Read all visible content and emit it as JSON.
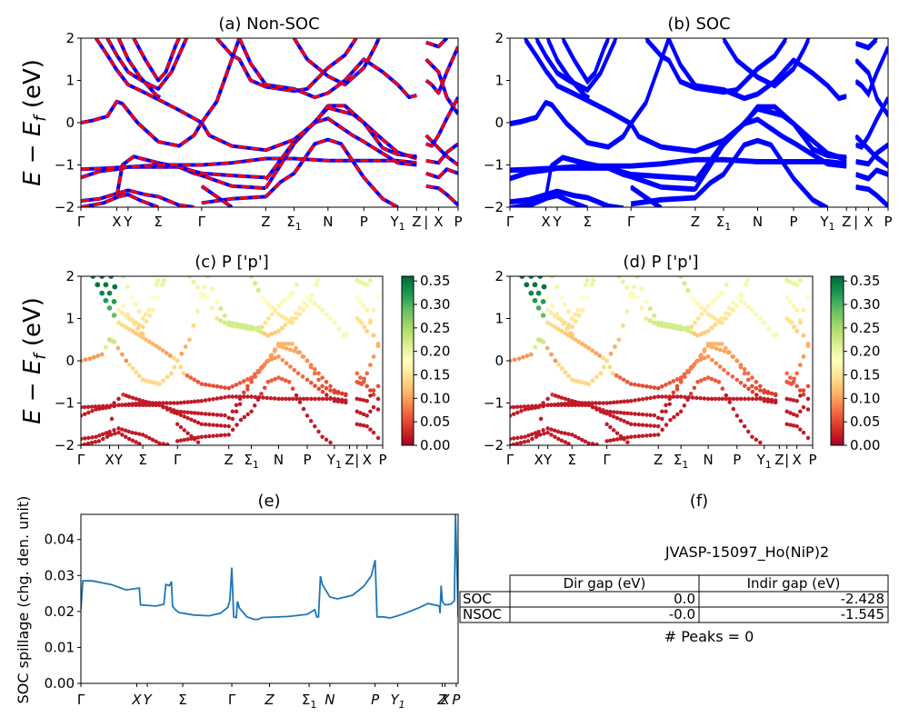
{
  "figure_id": "JVASP-15097_Ho(NiP)2",
  "panels": {
    "a": {
      "title": "(a) Non-SOC"
    },
    "b": {
      "title": "(b) SOC"
    },
    "c": {
      "title": "(c)  P ['p']"
    },
    "d": {
      "title": "(d) P ['p']"
    },
    "e": {
      "title": "(e)"
    },
    "f": {
      "title": "(f)"
    }
  },
  "band_ylabel": "E − E",
  "band_ylabel_sub": "f",
  "band_ylabel_unit": " (eV)",
  "spillage_ylabel": "SOC spillage (chg. den. unit)",
  "colorbar_ticks": [
    "0.00",
    "0.05",
    "0.10",
    "0.15",
    "0.20",
    "0.25",
    "0.30",
    "0.35"
  ],
  "kpath_band": [
    {
      "label": "Γ",
      "pos": 0.0
    },
    {
      "label": "X",
      "pos": 0.095
    },
    {
      "label": "Y",
      "pos": 0.125
    },
    {
      "label": "Σ",
      "pos": 0.205
    },
    {
      "label": "Γ",
      "pos": 0.32
    },
    {
      "label": "Z",
      "pos": 0.49
    },
    {
      "label": "Σ",
      "sub": "1",
      "pos": 0.565
    },
    {
      "label": "N",
      "pos": 0.655
    },
    {
      "label": "P",
      "pos": 0.75
    },
    {
      "label": "Y",
      "sub": "1",
      "pos": 0.84
    },
    {
      "label": "Z",
      "pos": 0.89
    },
    {
      "label": "|",
      "pos": 0.915
    },
    {
      "label": "X",
      "pos": 0.948
    },
    {
      "label": "P",
      "pos": 1.0
    }
  ],
  "kpath_bandc": [
    {
      "label": "Γ",
      "pos": 0.0
    },
    {
      "label": "X",
      "pos": 0.095
    },
    {
      "label": "Y",
      "pos": 0.125
    },
    {
      "label": "Σ",
      "pos": 0.205
    },
    {
      "label": "Γ",
      "pos": 0.32
    },
    {
      "label": "Z",
      "pos": 0.49
    },
    {
      "label": "Σ",
      "sub": "1",
      "pos": 0.565
    },
    {
      "label": "N",
      "pos": 0.655
    },
    {
      "label": "P",
      "pos": 0.75
    },
    {
      "label": "Y",
      "sub": "1",
      "pos": 0.84
    },
    {
      "label": "Z",
      "pos": 0.89
    },
    {
      "label": "|",
      "pos": 0.915
    },
    {
      "label": "X",
      "pos": 0.948
    },
    {
      "label": "P",
      "pos": 1.0
    }
  ],
  "kpath_spill": [
    {
      "label": "Γ",
      "pos": 0.0
    },
    {
      "label": "X",
      "pos": 0.148
    },
    {
      "label": "Y",
      "pos": 0.176
    },
    {
      "label": "Σ",
      "pos": 0.27
    },
    {
      "label": "Γ",
      "pos": 0.4
    },
    {
      "label": "Z",
      "pos": 0.5
    },
    {
      "label": "Σ",
      "sub": "1",
      "pos": 0.605
    },
    {
      "label": "N",
      "pos": 0.66
    },
    {
      "label": "P",
      "pos": 0.78
    },
    {
      "label": "Y",
      "sub": "1",
      "pos": 0.84
    },
    {
      "label": "Z",
      "pos": 0.958
    },
    {
      "label": "X",
      "pos": 0.965
    },
    {
      "label": "P",
      "pos": 0.995
    }
  ],
  "chart_data": [
    {
      "type": "line",
      "panel": "a",
      "title": "(a) Non-SOC",
      "ylabel": "E − E_f (eV)",
      "ylim": [
        -2,
        2
      ],
      "series_colors": [
        "#0000ff",
        "#ff0000"
      ],
      "bands": [
        [
          [
            0,
            -2.0
          ],
          [
            0.06,
            -1.9
          ],
          [
            0.1,
            -1.75
          ],
          [
            0.125,
            -1.7
          ],
          [
            0.16,
            -1.85
          ],
          [
            0.205,
            -2.0
          ]
        ],
        [
          [
            0,
            -1.85
          ],
          [
            0.05,
            -1.8
          ],
          [
            0.095,
            -1.68
          ],
          [
            0.125,
            -1.6
          ],
          [
            0.17,
            -1.7
          ],
          [
            0.205,
            -1.75
          ],
          [
            0.26,
            -1.95
          ],
          [
            0.3,
            -2.0
          ]
        ],
        [
          [
            0,
            -1.3
          ],
          [
            0.05,
            -1.15
          ],
          [
            0.095,
            -1.1
          ],
          [
            0.125,
            -1.05
          ],
          [
            0.205,
            -1.05
          ],
          [
            0.26,
            -1.05
          ],
          [
            0.3,
            -1.2
          ],
          [
            0.32,
            -1.25
          ],
          [
            0.4,
            -1.5
          ],
          [
            0.49,
            -1.55
          ]
        ],
        [
          [
            0.095,
            -1.75
          ],
          [
            0.11,
            -1.0
          ],
          [
            0.14,
            -0.8
          ],
          [
            0.16,
            -0.85
          ],
          [
            0.205,
            -0.95
          ],
          [
            0.26,
            -1.05
          ],
          [
            0.32,
            -1.2
          ],
          [
            0.4,
            -1.25
          ],
          [
            0.49,
            -1.3
          ]
        ],
        [
          [
            0,
            -1.1
          ],
          [
            0.06,
            -1.08
          ],
          [
            0.125,
            -1.05
          ],
          [
            0.205,
            -1.0
          ],
          [
            0.26,
            -1.0
          ],
          [
            0.32,
            -1.0
          ],
          [
            0.4,
            -0.95
          ],
          [
            0.49,
            -0.85
          ],
          [
            0.565,
            -0.85
          ],
          [
            0.655,
            -0.9
          ],
          [
            0.75,
            -0.9
          ],
          [
            0.84,
            -0.9
          ],
          [
            0.89,
            -0.95
          ]
        ],
        [
          [
            0.32,
            -1.9
          ],
          [
            0.4,
            -1.8
          ],
          [
            0.49,
            -1.75
          ],
          [
            0.53,
            -1.4
          ],
          [
            0.565,
            -1.2
          ],
          [
            0.62,
            -0.5
          ],
          [
            0.655,
            -0.4
          ],
          [
            0.69,
            -0.5
          ],
          [
            0.75,
            -1.3
          ],
          [
            0.8,
            -1.8
          ],
          [
            0.84,
            -2.0
          ]
        ],
        [
          [
            0.32,
            -1.5
          ],
          [
            0.4,
            -2.0
          ]
        ],
        [
          [
            0.49,
            -1.55
          ],
          [
            0.565,
            -0.5
          ],
          [
            0.655,
            0.35
          ],
          [
            0.72,
            0.2
          ],
          [
            0.75,
            0.0
          ],
          [
            0.8,
            -0.4
          ],
          [
            0.84,
            -0.7
          ],
          [
            0.89,
            -0.85
          ]
        ],
        [
          [
            0.49,
            -1.35
          ],
          [
            0.565,
            -0.45
          ],
          [
            0.62,
            0.0
          ],
          [
            0.655,
            0.1
          ],
          [
            0.72,
            -0.3
          ],
          [
            0.75,
            -0.45
          ],
          [
            0.84,
            -0.95
          ],
          [
            0.89,
            -1.0
          ]
        ],
        [
          [
            0,
            0.0
          ],
          [
            0.03,
            0.05
          ],
          [
            0.07,
            0.15
          ],
          [
            0.095,
            0.5
          ],
          [
            0.11,
            0.45
          ],
          [
            0.15,
            0.0
          ],
          [
            0.205,
            -0.45
          ],
          [
            0.26,
            -0.55
          ],
          [
            0.3,
            -0.3
          ],
          [
            0.32,
            0.0
          ],
          [
            0.34,
            -0.3
          ],
          [
            0.4,
            -0.55
          ],
          [
            0.49,
            -0.65
          ],
          [
            0.565,
            -0.4
          ],
          [
            0.62,
            0.0
          ],
          [
            0.655,
            0.4
          ],
          [
            0.7,
            0.4
          ],
          [
            0.75,
            0.0
          ],
          [
            0.8,
            -0.6
          ],
          [
            0.84,
            -0.75
          ],
          [
            0.89,
            -0.8
          ]
        ],
        [
          [
            0.04,
            2.0
          ],
          [
            0.07,
            1.6
          ],
          [
            0.095,
            1.25
          ],
          [
            0.125,
            0.9
          ],
          [
            0.16,
            0.75
          ],
          [
            0.205,
            0.55
          ],
          [
            0.26,
            0.3
          ],
          [
            0.32,
            0.0
          ],
          [
            0.36,
            0.5
          ],
          [
            0.4,
            1.5
          ],
          [
            0.42,
            2.0
          ]
        ],
        [
          [
            0.07,
            2.0
          ],
          [
            0.095,
            1.6
          ],
          [
            0.125,
            1.2
          ],
          [
            0.16,
            1.0
          ],
          [
            0.205,
            0.8
          ],
          [
            0.24,
            1.2
          ],
          [
            0.27,
            1.8
          ],
          [
            0.28,
            2.0
          ]
        ],
        [
          [
            0.1,
            2.0
          ],
          [
            0.125,
            1.5
          ],
          [
            0.155,
            1.1
          ],
          [
            0.2,
            0.65
          ],
          [
            0.21,
            0.6
          ]
        ],
        [
          [
            0.14,
            2.0
          ],
          [
            0.17,
            1.5
          ],
          [
            0.205,
            1.0
          ],
          [
            0.225,
            1.2
          ],
          [
            0.25,
            1.8
          ],
          [
            0.26,
            2.0
          ]
        ],
        [
          [
            0.36,
            2.0
          ],
          [
            0.4,
            1.6
          ],
          [
            0.42,
            1.5
          ],
          [
            0.45,
            1.0
          ],
          [
            0.49,
            0.85
          ],
          [
            0.565,
            0.75
          ],
          [
            0.6,
            0.8
          ],
          [
            0.655,
            1.3
          ],
          [
            0.7,
            1.6
          ],
          [
            0.73,
            2.0
          ]
        ],
        [
          [
            0.42,
            2.0
          ],
          [
            0.45,
            1.4
          ],
          [
            0.49,
            0.9
          ],
          [
            0.565,
            0.8
          ],
          [
            0.62,
            0.6
          ],
          [
            0.655,
            0.7
          ],
          [
            0.7,
            1.0
          ],
          [
            0.75,
            1.5
          ],
          [
            0.8,
            1.2
          ],
          [
            0.84,
            0.9
          ],
          [
            0.87,
            0.6
          ],
          [
            0.89,
            0.65
          ]
        ],
        [
          [
            0.565,
            2.0
          ],
          [
            0.6,
            1.5
          ],
          [
            0.655,
            1.1
          ],
          [
            0.7,
            0.9
          ],
          [
            0.75,
            1.3
          ],
          [
            0.78,
            1.8
          ],
          [
            0.79,
            2.0
          ]
        ],
        [
          [
            0.915,
            1.0
          ],
          [
            0.93,
            0.9
          ],
          [
            0.948,
            0.7
          ],
          [
            0.97,
            1.2
          ],
          [
            1.0,
            1.8
          ]
        ],
        [
          [
            0.915,
            1.5
          ],
          [
            0.948,
            1.2
          ],
          [
            0.97,
            0.6
          ],
          [
            1.0,
            0.2
          ]
        ],
        [
          [
            0.915,
            -0.3
          ],
          [
            0.948,
            -0.6
          ],
          [
            0.97,
            -0.8
          ],
          [
            1.0,
            -1.0
          ]
        ],
        [
          [
            0.915,
            -0.9
          ],
          [
            0.948,
            -0.95
          ],
          [
            0.97,
            -0.7
          ],
          [
            1.0,
            -0.5
          ]
        ],
        [
          [
            0.915,
            -1.2
          ],
          [
            0.948,
            -1.3
          ],
          [
            0.97,
            -1.1
          ],
          [
            1.0,
            -1.2
          ]
        ],
        [
          [
            0.915,
            1.9
          ],
          [
            0.948,
            1.8
          ],
          [
            0.97,
            2.0
          ]
        ],
        [
          [
            0.915,
            -0.5
          ],
          [
            0.93,
            -0.55
          ],
          [
            0.948,
            -0.3
          ],
          [
            0.97,
            0.1
          ],
          [
            1.0,
            0.6
          ]
        ],
        [
          [
            0.915,
            -1.5
          ],
          [
            0.948,
            -1.55
          ],
          [
            0.97,
            -1.7
          ],
          [
            1.0,
            -1.95
          ]
        ]
      ]
    },
    {
      "type": "line",
      "panel": "b",
      "title": "(b) SOC",
      "ylim": [
        -2,
        2
      ],
      "series_colors": [
        "#0000ff"
      ],
      "bands": "same as panel a"
    },
    {
      "type": "scatter",
      "panel": "c",
      "title": "(c)  P ['p']",
      "ylim": [
        -2,
        2
      ],
      "colorbar": [
        0.0,
        0.36
      ],
      "colormap": "RdYlGn"
    },
    {
      "type": "scatter",
      "panel": "d",
      "title": "(d) P ['p']",
      "ylim": [
        -2,
        2
      ],
      "colorbar": [
        0.0,
        0.36
      ],
      "colormap": "RdYlGn"
    },
    {
      "type": "line",
      "panel": "e",
      "title": "(e)",
      "ylabel": "SOC spillage (chg. den. unit)",
      "ylim": [
        0,
        0.047
      ],
      "yticks": [
        "0.00",
        "0.01",
        "0.02",
        "0.03",
        "0.04"
      ],
      "color": "#1f77b4",
      "points": [
        [
          0,
          0.0205
        ],
        [
          0.005,
          0.0285
        ],
        [
          0.03,
          0.0285
        ],
        [
          0.08,
          0.0275
        ],
        [
          0.12,
          0.026
        ],
        [
          0.155,
          0.0265
        ],
        [
          0.158,
          0.0218
        ],
        [
          0.2,
          0.0215
        ],
        [
          0.22,
          0.022
        ],
        [
          0.225,
          0.0275
        ],
        [
          0.235,
          0.0272
        ],
        [
          0.24,
          0.0283
        ],
        [
          0.243,
          0.0215
        ],
        [
          0.25,
          0.0205
        ],
        [
          0.26,
          0.0197
        ],
        [
          0.3,
          0.019
        ],
        [
          0.34,
          0.0188
        ],
        [
          0.37,
          0.0195
        ],
        [
          0.39,
          0.0212
        ],
        [
          0.395,
          0.0232
        ],
        [
          0.4,
          0.0322
        ],
        [
          0.405,
          0.0185
        ],
        [
          0.412,
          0.0183
        ],
        [
          0.415,
          0.0228
        ],
        [
          0.42,
          0.021
        ],
        [
          0.44,
          0.0185
        ],
        [
          0.46,
          0.0178
        ],
        [
          0.47,
          0.0178
        ],
        [
          0.48,
          0.0183
        ],
        [
          0.55,
          0.0186
        ],
        [
          0.6,
          0.0192
        ],
        [
          0.62,
          0.0205
        ],
        [
          0.625,
          0.0185
        ],
        [
          0.63,
          0.0185
        ],
        [
          0.635,
          0.0298
        ],
        [
          0.64,
          0.0275
        ],
        [
          0.66,
          0.024
        ],
        [
          0.68,
          0.0235
        ],
        [
          0.72,
          0.0245
        ],
        [
          0.75,
          0.027
        ],
        [
          0.77,
          0.03
        ],
        [
          0.78,
          0.0343
        ],
        [
          0.785,
          0.0185
        ],
        [
          0.8,
          0.0185
        ],
        [
          0.82,
          0.0182
        ],
        [
          0.84,
          0.0188
        ],
        [
          0.86,
          0.0195
        ],
        [
          0.9,
          0.0212
        ],
        [
          0.92,
          0.0222
        ],
        [
          0.95,
          0.0215
        ],
        [
          0.952,
          0.0195
        ],
        [
          0.955,
          0.0272
        ],
        [
          0.958,
          0.0228
        ],
        [
          0.965,
          0.0218
        ],
        [
          0.98,
          0.022
        ],
        [
          0.99,
          0.023
        ],
        [
          0.993,
          0.047
        ],
        [
          0.996,
          0.0365
        ],
        [
          1.0,
          0.0185
        ]
      ]
    },
    {
      "type": "table",
      "panel": "f",
      "title": "(f)",
      "heading": "JVASP-15097_Ho(NiP)2",
      "columns": [
        "",
        "Dir gap (eV)",
        "Indir gap (eV)"
      ],
      "rows": [
        [
          "SOC",
          "0.0",
          "-2.428"
        ],
        [
          "NSOC",
          "-0.0",
          "-1.545"
        ]
      ],
      "footer": "# Peaks = 0"
    }
  ]
}
